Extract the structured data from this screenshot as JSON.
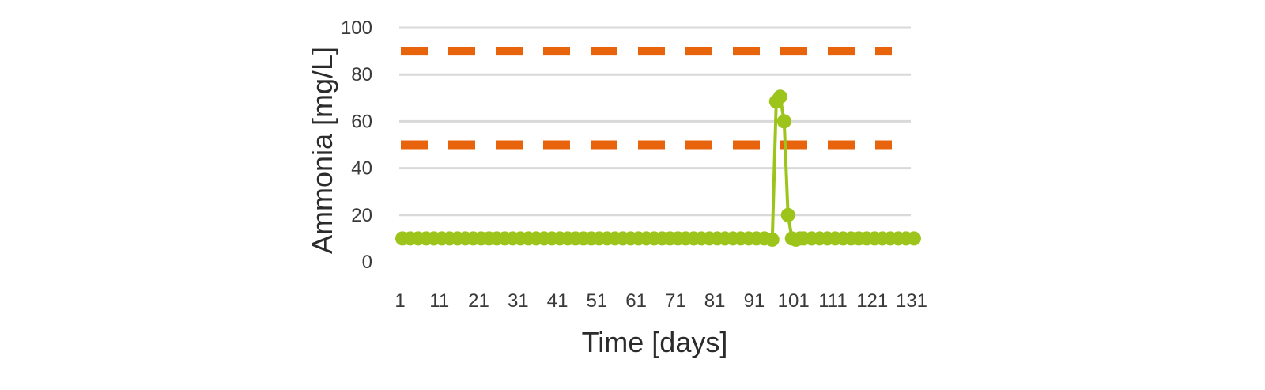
{
  "chart_data": {
    "type": "line",
    "xlabel": "Time [days]",
    "ylabel": "Ammonia [mg/L]",
    "xlim": [
      1,
      131
    ],
    "ylim": [
      0,
      100
    ],
    "x_ticks": [
      "1",
      "11",
      "21",
      "31",
      "41",
      "51",
      "61",
      "71",
      "81",
      "91",
      "101",
      "111",
      "121",
      "131"
    ],
    "y_ticks": [
      "0",
      "20",
      "40",
      "60",
      "80",
      "100"
    ],
    "grid": true,
    "legend": "none",
    "reference_lines": [
      {
        "y": 90,
        "style": "dashed",
        "color": "#e8640c"
      },
      {
        "y": 50,
        "style": "dashed",
        "color": "#e8640c"
      }
    ],
    "series": [
      {
        "color": "#9dc41a",
        "x": [
          1,
          3,
          5,
          7,
          9,
          11,
          13,
          15,
          17,
          19,
          21,
          23,
          25,
          27,
          29,
          31,
          33,
          35,
          37,
          39,
          41,
          43,
          45,
          47,
          49,
          51,
          53,
          55,
          57,
          59,
          61,
          63,
          65,
          67,
          69,
          71,
          73,
          75,
          77,
          79,
          81,
          83,
          85,
          87,
          89,
          91,
          93,
          95,
          96,
          97,
          98,
          99,
          100,
          101,
          102,
          103,
          105,
          107,
          109,
          111,
          113,
          115,
          117,
          119,
          121,
          123,
          125,
          127,
          129,
          131
        ],
        "y": [
          10,
          10,
          10,
          10,
          10,
          10,
          10,
          10,
          10,
          10,
          10,
          10,
          10,
          10,
          10,
          10,
          10,
          10,
          10,
          10,
          10,
          10,
          10,
          10,
          10,
          10,
          10,
          10,
          10,
          10,
          10,
          10,
          10,
          10,
          10,
          10,
          10,
          10,
          10,
          10,
          10,
          10,
          10,
          10,
          10,
          10,
          10,
          9.5,
          68.5,
          70.5,
          60,
          20,
          10,
          9.5,
          10,
          10,
          10,
          10,
          10,
          10,
          10,
          10,
          10,
          10,
          10,
          10,
          10,
          10,
          10,
          10
        ]
      }
    ]
  }
}
